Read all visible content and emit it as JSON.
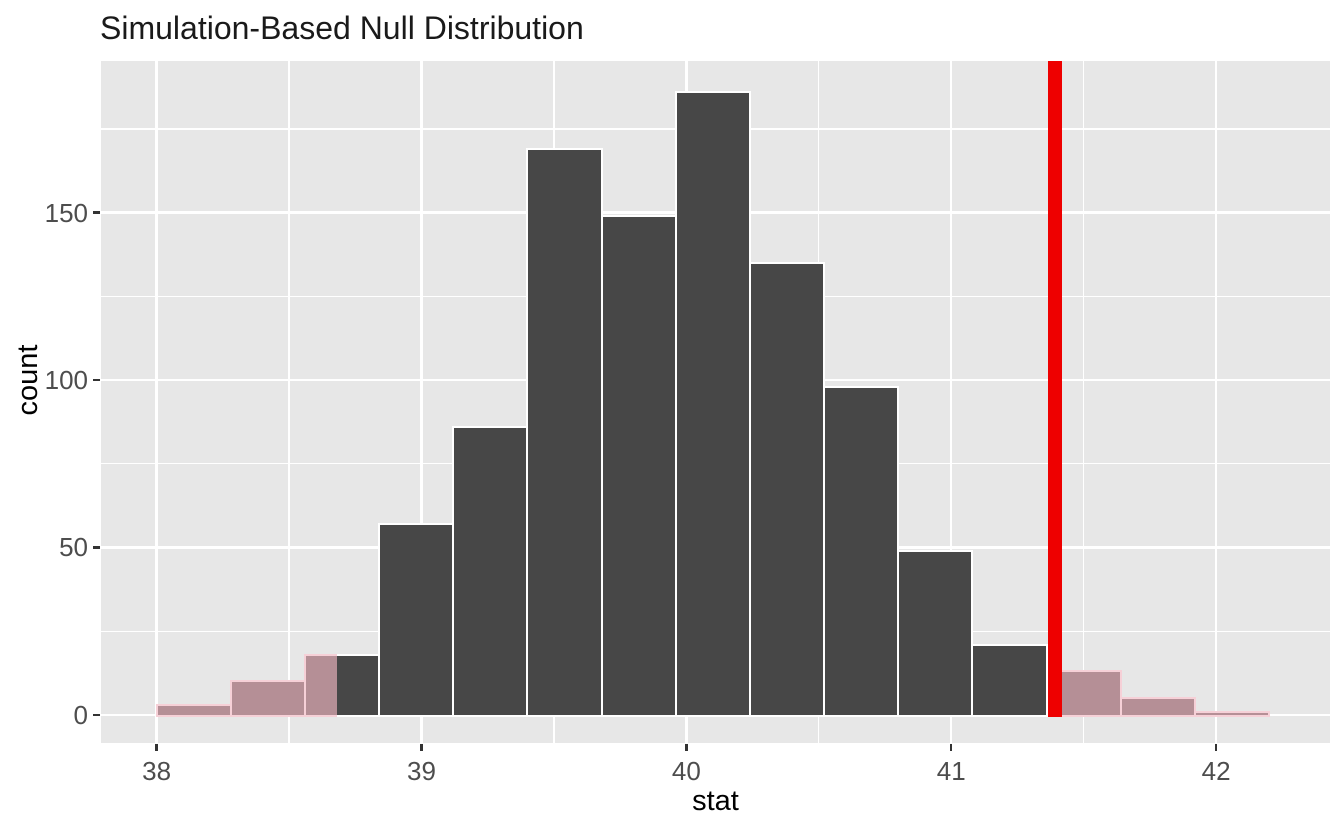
{
  "chart_data": {
    "type": "histogram",
    "title": "Simulation-Based Null Distribution",
    "xlabel": "stat",
    "ylabel": "count",
    "x_ticks": [
      38,
      39,
      40,
      41,
      42
    ],
    "x_minor_ticks": [
      38.5,
      39.5,
      40.5,
      41.5
    ],
    "y_ticks": [
      0,
      50,
      100,
      150
    ],
    "y_minor_ticks": [
      25,
      75,
      125,
      175
    ],
    "xlim": [
      37.79,
      42.43
    ],
    "ylim": [
      -8.4,
      195.3
    ],
    "bin_width": 0.28,
    "total_count": 1000,
    "bins": [
      {
        "start": 38.0,
        "end": 38.28,
        "count": 3,
        "shaded": "full"
      },
      {
        "start": 38.28,
        "end": 38.56,
        "count": 10,
        "shaded": "full"
      },
      {
        "start": 38.56,
        "end": 38.84,
        "count": 18,
        "shaded": "partial-left"
      },
      {
        "start": 38.84,
        "end": 39.12,
        "count": 57,
        "shaded": "none"
      },
      {
        "start": 39.12,
        "end": 39.4,
        "count": 86,
        "shaded": "none"
      },
      {
        "start": 39.4,
        "end": 39.68,
        "count": 169,
        "shaded": "none"
      },
      {
        "start": 39.68,
        "end": 39.96,
        "count": 149,
        "shaded": "none"
      },
      {
        "start": 39.96,
        "end": 40.24,
        "count": 186,
        "shaded": "none"
      },
      {
        "start": 40.24,
        "end": 40.52,
        "count": 135,
        "shaded": "none"
      },
      {
        "start": 40.52,
        "end": 40.8,
        "count": 98,
        "shaded": "none"
      },
      {
        "start": 40.8,
        "end": 41.08,
        "count": 49,
        "shaded": "none"
      },
      {
        "start": 41.08,
        "end": 41.36,
        "count": 21,
        "shaded": "none"
      },
      {
        "start": 41.36,
        "end": 41.64,
        "count": 13,
        "shaded": "partial-right"
      },
      {
        "start": 41.64,
        "end": 41.92,
        "count": 5,
        "shaded": "full"
      },
      {
        "start": 41.92,
        "end": 42.2,
        "count": 1,
        "shaded": "full"
      }
    ],
    "obs_stat_line": {
      "x": 41.39
    },
    "shade_boundaries": {
      "left": 38.68,
      "right": 41.39
    },
    "grid": true,
    "legend": "none"
  },
  "colors": {
    "panel_background": "#e7e7e7",
    "gridline": "#ffffff",
    "bar_fill": "#474747",
    "bar_border": "#ffffff",
    "shaded_fill": "#b58f96",
    "shaded_border": "#f6d0d7",
    "obs_line": "#ee0000",
    "tick_mark": "#333333",
    "axis_text": "#4d4d4d",
    "title_text": "#1a1a1a"
  }
}
